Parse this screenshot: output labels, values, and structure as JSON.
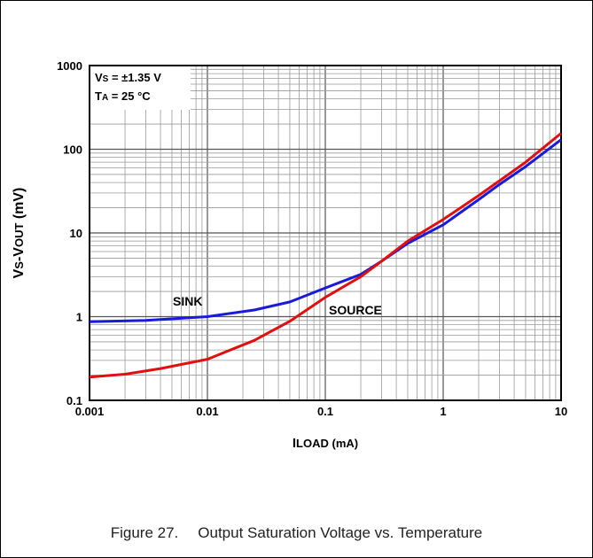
{
  "caption": {
    "number": "Figure 27.",
    "text": "Output Saturation Voltage vs. Temperature"
  },
  "chart_data": {
    "type": "line",
    "xscale": "log",
    "yscale": "log",
    "xlim": [
      0.001,
      10
    ],
    "ylim": [
      0.1,
      1000
    ],
    "xticks": [
      "0.001",
      "0.01",
      "0.1",
      "1",
      "10"
    ],
    "yticks": [
      "0.1",
      "1",
      "10",
      "100",
      "1000"
    ],
    "xlabel": {
      "main": "I",
      "sub": "LOAD",
      "unit": " (mA)"
    },
    "ylabel": {
      "a": "V",
      "a_sub": "S",
      "dash": "-V",
      "b_sub": "OUT",
      "unit": " (mV)"
    },
    "conditions": [
      {
        "main": "V",
        "sub": "S",
        "rest": " = ±1.35 V"
      },
      {
        "main": "T",
        "sub": "A",
        "rest": " = 25 °C"
      }
    ],
    "grid": true,
    "series": [
      {
        "name": "SINK",
        "color": "#1a1adc",
        "points": [
          [
            0.001,
            0.87
          ],
          [
            0.003,
            0.9
          ],
          [
            0.01,
            1.0
          ],
          [
            0.025,
            1.2
          ],
          [
            0.05,
            1.5
          ],
          [
            0.1,
            2.2
          ],
          [
            0.2,
            3.2
          ],
          [
            0.3,
            4.6
          ],
          [
            0.5,
            7.5
          ],
          [
            1,
            12.5
          ],
          [
            2,
            25
          ],
          [
            3,
            38
          ],
          [
            5,
            62
          ],
          [
            10,
            130
          ]
        ]
      },
      {
        "name": "SOURCE",
        "color": "#e01010",
        "points": [
          [
            0.001,
            0.19
          ],
          [
            0.002,
            0.205
          ],
          [
            0.004,
            0.24
          ],
          [
            0.01,
            0.31
          ],
          [
            0.025,
            0.52
          ],
          [
            0.05,
            0.88
          ],
          [
            0.1,
            1.7
          ],
          [
            0.2,
            3.0
          ],
          [
            0.3,
            4.6
          ],
          [
            0.5,
            8.0
          ],
          [
            1,
            14.5
          ],
          [
            2,
            28
          ],
          [
            3,
            42
          ],
          [
            5,
            70
          ],
          [
            10,
            155
          ]
        ]
      }
    ],
    "annotations": [
      {
        "text": "SINK",
        "series": "SINK"
      },
      {
        "text": "SOURCE",
        "series": "SOURCE"
      }
    ]
  }
}
